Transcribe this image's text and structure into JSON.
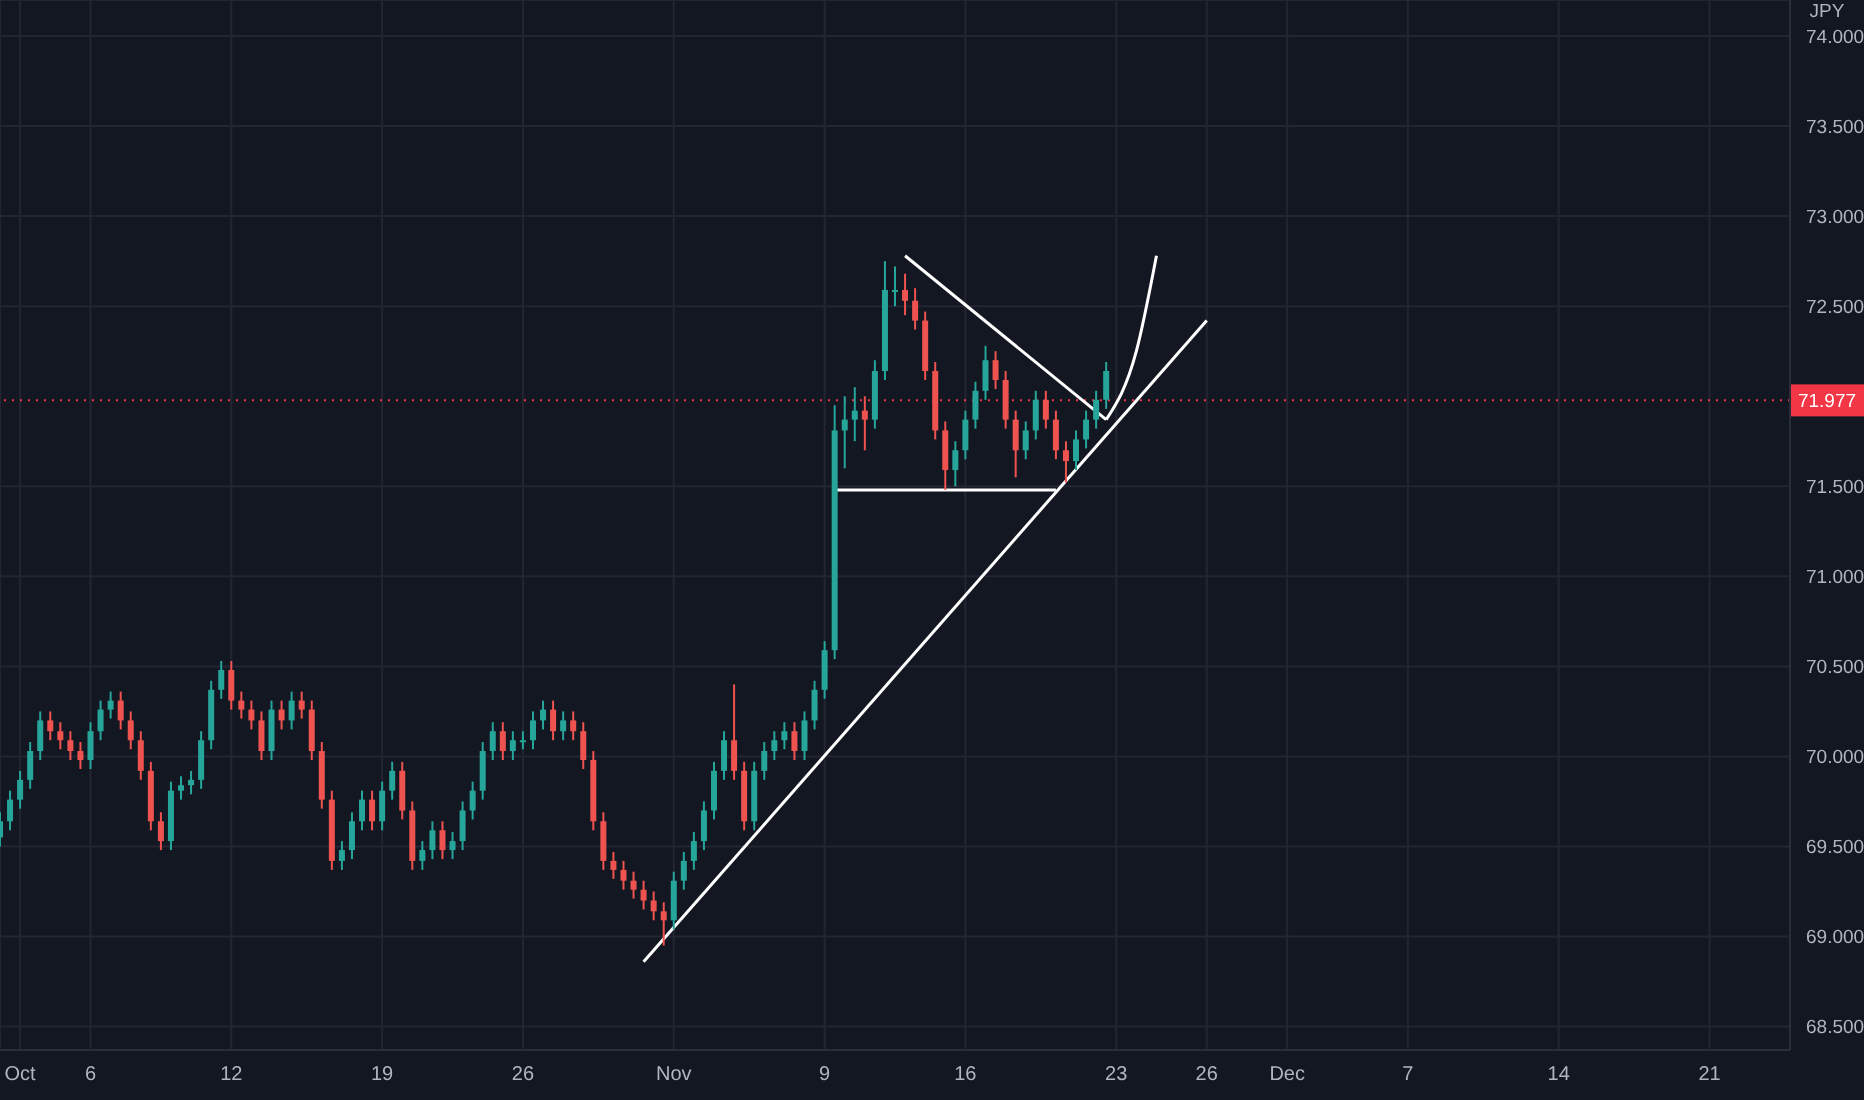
{
  "chart_data": {
    "type": "candlestick",
    "ylabel": "JPY",
    "categories": [
      null,
      null,
      "Oct",
      null,
      null,
      null,
      null,
      null,
      null,
      "6",
      null,
      null,
      null,
      null,
      null,
      null,
      null,
      null,
      null,
      null,
      null,
      null,
      null,
      "12",
      null,
      null,
      null,
      null,
      null,
      null,
      null,
      null,
      null,
      null,
      null,
      null,
      null,
      null,
      "19",
      null,
      null,
      null,
      null,
      null,
      null,
      null,
      null,
      null,
      null,
      null,
      null,
      null,
      "26",
      null,
      null,
      null,
      null,
      null,
      null,
      null,
      null,
      null,
      null,
      null,
      null,
      null,
      null,
      "Nov",
      null,
      null,
      null,
      null,
      null,
      null,
      null,
      null,
      null,
      null,
      null,
      null,
      null,
      null,
      "9",
      null,
      null,
      null,
      null,
      null,
      null,
      null,
      null,
      null,
      null,
      null,
      null,
      null,
      "16",
      null,
      null,
      null,
      null,
      null,
      null,
      null,
      null,
      null,
      null,
      null,
      null,
      null,
      null,
      "23",
      null,
      null,
      null,
      null,
      null,
      null,
      null,
      null,
      "26",
      null,
      null,
      null,
      null,
      null,
      null,
      null,
      "Dec",
      null,
      null,
      null,
      null,
      null,
      null,
      null,
      null,
      null,
      null,
      null,
      "7",
      null,
      null,
      null,
      null,
      null,
      null,
      null,
      null,
      null,
      null,
      null,
      null,
      null,
      null,
      "14",
      null,
      null,
      null,
      null,
      null,
      null,
      null,
      null,
      null,
      null,
      null,
      null,
      null,
      null,
      "21",
      null,
      null,
      null,
      null,
      null,
      null,
      null,
      null
    ],
    "ohlc": [
      [
        69.55,
        69.69,
        69.5,
        69.64
      ],
      [
        69.64,
        69.81,
        69.59,
        69.76
      ],
      [
        69.76,
        69.92,
        69.71,
        69.87
      ],
      [
        69.87,
        70.08,
        69.82,
        70.03
      ],
      [
        70.03,
        70.25,
        69.98,
        70.2
      ],
      [
        70.2,
        70.25,
        70.09,
        70.14
      ],
      [
        70.14,
        70.19,
        70.04,
        70.09
      ],
      [
        70.09,
        70.14,
        69.98,
        70.03
      ],
      [
        70.03,
        70.08,
        69.93,
        69.98
      ],
      [
        69.98,
        70.19,
        69.93,
        70.14
      ],
      [
        70.14,
        70.31,
        70.09,
        70.26
      ],
      [
        70.26,
        70.36,
        70.21,
        70.31
      ],
      [
        70.31,
        70.36,
        70.15,
        70.2
      ],
      [
        70.2,
        70.25,
        70.04,
        70.09
      ],
      [
        70.09,
        70.14,
        69.87,
        69.92
      ],
      [
        69.92,
        69.97,
        69.59,
        69.64
      ],
      [
        69.64,
        69.69,
        69.48,
        69.53
      ],
      [
        69.53,
        69.86,
        69.48,
        69.81
      ],
      [
        69.81,
        69.89,
        69.76,
        69.84
      ],
      [
        69.84,
        69.92,
        69.79,
        69.87
      ],
      [
        69.87,
        70.14,
        69.82,
        70.09
      ],
      [
        70.09,
        70.42,
        70.04,
        70.37
      ],
      [
        70.37,
        70.53,
        70.32,
        70.48
      ],
      [
        70.48,
        70.53,
        70.26,
        70.31
      ],
      [
        70.31,
        70.36,
        70.21,
        70.26
      ],
      [
        70.26,
        70.31,
        70.15,
        70.2
      ],
      [
        70.2,
        70.25,
        69.98,
        70.03
      ],
      [
        70.03,
        70.31,
        69.98,
        70.26
      ],
      [
        70.26,
        70.31,
        70.15,
        70.2
      ],
      [
        70.2,
        70.36,
        70.15,
        70.31
      ],
      [
        70.31,
        70.36,
        70.21,
        70.26
      ],
      [
        70.26,
        70.31,
        69.98,
        70.03
      ],
      [
        70.03,
        70.08,
        69.71,
        69.76
      ],
      [
        69.76,
        69.81,
        69.37,
        69.42
      ],
      [
        69.42,
        69.53,
        69.37,
        69.48
      ],
      [
        69.48,
        69.69,
        69.43,
        69.64
      ],
      [
        69.64,
        69.81,
        69.59,
        69.76
      ],
      [
        69.76,
        69.81,
        69.59,
        69.64
      ],
      [
        69.64,
        69.86,
        69.59,
        69.81
      ],
      [
        69.81,
        69.97,
        69.76,
        69.92
      ],
      [
        69.92,
        69.97,
        69.65,
        69.7
      ],
      [
        69.7,
        69.75,
        69.37,
        69.42
      ],
      [
        69.42,
        69.53,
        69.37,
        69.48
      ],
      [
        69.48,
        69.64,
        69.43,
        69.59
      ],
      [
        69.59,
        69.64,
        69.43,
        69.48
      ],
      [
        69.48,
        69.58,
        69.43,
        69.53
      ],
      [
        69.53,
        69.75,
        69.48,
        69.7
      ],
      [
        69.7,
        69.86,
        69.65,
        69.81
      ],
      [
        69.81,
        70.08,
        69.76,
        70.03
      ],
      [
        70.03,
        70.19,
        69.98,
        70.14
      ],
      [
        70.14,
        70.19,
        69.98,
        70.03
      ],
      [
        70.03,
        70.14,
        69.98,
        70.09
      ],
      [
        70.09,
        70.14,
        70.04,
        70.09
      ],
      [
        70.09,
        70.25,
        70.04,
        70.2
      ],
      [
        70.2,
        70.31,
        70.15,
        70.26
      ],
      [
        70.26,
        70.31,
        70.09,
        70.14
      ],
      [
        70.14,
        70.25,
        70.09,
        70.2
      ],
      [
        70.2,
        70.25,
        70.09,
        70.14
      ],
      [
        70.14,
        70.19,
        69.93,
        69.98
      ],
      [
        69.98,
        70.03,
        69.59,
        69.64
      ],
      [
        69.64,
        69.69,
        69.37,
        69.42
      ],
      [
        69.42,
        69.47,
        69.32,
        69.37
      ],
      [
        69.37,
        69.42,
        69.26,
        69.31
      ],
      [
        69.31,
        69.36,
        69.21,
        69.26
      ],
      [
        69.26,
        69.31,
        69.15,
        69.2
      ],
      [
        69.2,
        69.25,
        69.09,
        69.14
      ],
      [
        69.14,
        69.19,
        68.95,
        69.09
      ],
      [
        69.09,
        69.36,
        69.04,
        69.31
      ],
      [
        69.31,
        69.47,
        69.26,
        69.42
      ],
      [
        69.42,
        69.58,
        69.37,
        69.53
      ],
      [
        69.53,
        69.75,
        69.48,
        69.7
      ],
      [
        69.7,
        69.97,
        69.65,
        69.92
      ],
      [
        69.92,
        70.14,
        69.87,
        70.09
      ],
      [
        70.09,
        70.4,
        69.87,
        69.92
      ],
      [
        69.92,
        69.97,
        69.59,
        69.64
      ],
      [
        69.64,
        69.97,
        69.59,
        69.92
      ],
      [
        69.92,
        70.08,
        69.87,
        70.03
      ],
      [
        70.03,
        70.14,
        69.98,
        70.09
      ],
      [
        70.09,
        70.19,
        70.04,
        70.14
      ],
      [
        70.14,
        70.19,
        69.98,
        70.03
      ],
      [
        70.03,
        70.25,
        69.98,
        70.2
      ],
      [
        70.2,
        70.42,
        70.15,
        70.37
      ],
      [
        70.37,
        70.64,
        70.32,
        70.59
      ],
      [
        70.59,
        71.95,
        70.54,
        71.81
      ],
      [
        71.81,
        72.0,
        71.6,
        71.87
      ],
      [
        71.87,
        72.05,
        71.75,
        71.92
      ],
      [
        71.92,
        72.0,
        71.7,
        71.87
      ],
      [
        71.87,
        72.2,
        71.82,
        72.14
      ],
      [
        72.14,
        72.75,
        72.09,
        72.59
      ],
      [
        72.59,
        72.72,
        72.5,
        72.59
      ],
      [
        72.59,
        72.68,
        72.45,
        72.53
      ],
      [
        72.53,
        72.6,
        72.37,
        72.42
      ],
      [
        72.42,
        72.47,
        72.09,
        72.14
      ],
      [
        72.14,
        72.19,
        71.76,
        71.81
      ],
      [
        71.81,
        71.86,
        71.48,
        71.59
      ],
      [
        71.59,
        71.75,
        71.5,
        71.7
      ],
      [
        71.7,
        71.92,
        71.65,
        71.87
      ],
      [
        71.87,
        72.08,
        71.82,
        72.03
      ],
      [
        72.03,
        72.28,
        71.98,
        72.2
      ],
      [
        72.2,
        72.25,
        72.04,
        72.09
      ],
      [
        72.09,
        72.14,
        71.82,
        71.87
      ],
      [
        71.87,
        71.92,
        71.55,
        71.7
      ],
      [
        71.7,
        71.86,
        71.65,
        71.81
      ],
      [
        71.81,
        72.03,
        71.76,
        71.98
      ],
      [
        71.98,
        72.03,
        71.82,
        71.87
      ],
      [
        71.87,
        71.92,
        71.65,
        71.7
      ],
      [
        71.7,
        71.75,
        71.52,
        71.64
      ],
      [
        71.64,
        71.81,
        71.59,
        71.76
      ],
      [
        71.76,
        71.92,
        71.71,
        71.87
      ],
      [
        71.87,
        72.03,
        71.82,
        71.98
      ],
      [
        71.98,
        72.19,
        71.93,
        72.14
      ],
      null,
      null,
      null,
      null,
      null,
      null,
      null,
      null,
      null,
      null,
      null,
      null,
      null,
      null,
      null,
      null,
      null,
      null,
      null,
      null,
      null,
      null,
      null,
      null,
      null,
      null,
      null,
      null,
      null,
      null,
      null,
      null,
      null,
      null,
      null,
      null,
      null,
      null,
      null,
      null,
      null,
      null,
      null,
      null,
      null,
      null,
      null,
      null,
      null,
      null,
      null,
      null,
      null,
      null,
      null,
      null,
      null,
      null,
      null,
      null,
      null,
      null,
      null,
      null,
      null,
      null,
      null,
      null
    ],
    "series": [
      {
        "type": "line",
        "color": "#ffffff",
        "values": [
          null,
          null,
          null,
          null,
          null,
          null,
          null,
          null,
          null,
          null,
          null,
          null,
          null,
          null,
          null,
          null,
          null,
          null,
          null,
          null,
          null,
          null,
          null,
          null,
          null,
          null,
          null,
          null,
          null,
          null,
          null,
          null,
          null,
          null,
          null,
          null,
          null,
          null,
          null,
          null,
          null,
          null,
          null,
          null,
          null,
          null,
          null,
          null,
          null,
          null,
          null,
          null,
          null,
          null,
          null,
          null,
          null,
          null,
          null,
          null,
          null,
          null,
          null,
          null,
          68.86,
          null,
          null,
          null,
          null,
          null,
          null,
          null,
          null,
          null,
          null,
          null,
          null,
          null,
          null,
          null,
          null,
          null,
          null,
          null,
          null,
          null,
          null,
          null,
          null,
          null,
          null,
          null,
          null,
          null,
          null,
          null,
          null,
          null,
          null,
          null,
          null,
          null,
          null,
          null,
          null,
          null,
          null,
          null,
          null,
          null,
          null,
          null,
          null,
          null,
          null,
          null,
          null,
          null,
          null,
          null,
          72.42,
          null,
          null,
          null,
          null,
          null,
          null,
          null,
          null,
          null,
          null,
          null,
          null,
          null,
          null,
          null,
          null,
          null,
          null,
          null,
          null,
          null,
          null,
          null,
          null,
          null,
          null,
          null,
          null,
          null,
          null,
          null,
          null,
          null,
          null,
          null,
          null,
          null,
          null,
          null,
          null,
          null,
          null,
          null,
          null,
          null,
          null,
          null,
          null,
          null,
          null,
          null,
          null,
          null,
          null,
          null,
          null,
          null,
          null
        ]
      },
      {
        "type": "line",
        "color": "#ffffff",
        "values": [
          null,
          null,
          null,
          null,
          null,
          null,
          null,
          null,
          null,
          null,
          null,
          null,
          null,
          null,
          null,
          null,
          null,
          null,
          null,
          null,
          null,
          null,
          null,
          null,
          null,
          null,
          null,
          null,
          null,
          null,
          null,
          null,
          null,
          null,
          null,
          null,
          null,
          null,
          null,
          null,
          null,
          null,
          null,
          null,
          null,
          null,
          null,
          null,
          null,
          null,
          null,
          null,
          null,
          null,
          null,
          null,
          null,
          null,
          null,
          null,
          null,
          null,
          null,
          null,
          null,
          null,
          null,
          null,
          null,
          null,
          null,
          null,
          null,
          null,
          null,
          null,
          null,
          null,
          null,
          null,
          null,
          null,
          null,
          null,
          null,
          null,
          null,
          null,
          null,
          null,
          72.78,
          null,
          null,
          null,
          null,
          null,
          null,
          null,
          null,
          null,
          null,
          null,
          null,
          null,
          null,
          null,
          null,
          null,
          null,
          null,
          71.87,
          null,
          null,
          null,
          null,
          null,
          null,
          null,
          null,
          null,
          null,
          null,
          null,
          null,
          null,
          null,
          null,
          null,
          null,
          null,
          null,
          null,
          null,
          null,
          null,
          null,
          null,
          null,
          null,
          null,
          null,
          null,
          null,
          null,
          null,
          null,
          null,
          null,
          null,
          null,
          null,
          null,
          null,
          null,
          null,
          null,
          null,
          null,
          null,
          null,
          null,
          null,
          null,
          null,
          null,
          null,
          null,
          null,
          null,
          null,
          null,
          null,
          null,
          null,
          null,
          null,
          null,
          null,
          null
        ]
      },
      {
        "type": "line",
        "color": "#ffffff",
        "values": [
          null,
          null,
          null,
          null,
          null,
          null,
          null,
          null,
          null,
          null,
          null,
          null,
          null,
          null,
          null,
          null,
          null,
          null,
          null,
          null,
          null,
          null,
          null,
          null,
          null,
          null,
          null,
          null,
          null,
          null,
          null,
          null,
          null,
          null,
          null,
          null,
          null,
          null,
          null,
          null,
          null,
          null,
          null,
          null,
          null,
          null,
          null,
          null,
          null,
          null,
          null,
          null,
          null,
          null,
          null,
          null,
          null,
          null,
          null,
          null,
          null,
          null,
          null,
          null,
          null,
          null,
          null,
          null,
          null,
          null,
          null,
          null,
          null,
          null,
          null,
          null,
          null,
          null,
          null,
          null,
          null,
          null,
          null,
          71.48,
          null,
          null,
          null,
          null,
          null,
          null,
          null,
          null,
          null,
          null,
          null,
          null,
          null,
          null,
          null,
          null,
          null,
          null,
          null,
          null,
          null,
          71.48,
          null,
          null,
          null,
          null,
          null,
          null,
          null,
          null,
          null,
          null,
          null,
          null,
          null,
          null,
          null,
          null,
          null,
          null,
          null,
          null,
          null,
          null,
          null,
          null,
          null,
          null,
          null,
          null,
          null,
          null,
          null,
          null,
          null,
          null,
          null,
          null,
          null,
          null,
          null,
          null,
          null,
          null,
          null,
          null,
          null,
          null,
          null,
          null,
          null,
          null,
          null,
          null,
          null,
          null,
          null,
          null,
          null,
          null,
          null,
          null,
          null,
          null,
          null,
          null,
          null,
          null,
          null,
          null,
          null,
          null,
          null,
          null,
          null
        ]
      },
      {
        "type": "line",
        "color": "#ffffff",
        "values": [
          null,
          null,
          null,
          null,
          null,
          null,
          null,
          null,
          null,
          null,
          null,
          null,
          null,
          null,
          null,
          null,
          null,
          null,
          null,
          null,
          null,
          null,
          null,
          null,
          null,
          null,
          null,
          null,
          null,
          null,
          null,
          null,
          null,
          null,
          null,
          null,
          null,
          null,
          null,
          null,
          null,
          null,
          null,
          null,
          null,
          null,
          null,
          null,
          null,
          null,
          null,
          null,
          null,
          null,
          null,
          null,
          null,
          null,
          null,
          null,
          null,
          null,
          null,
          null,
          null,
          null,
          null,
          null,
          null,
          null,
          null,
          null,
          null,
          null,
          null,
          null,
          null,
          null,
          null,
          null,
          null,
          null,
          null,
          null,
          null,
          null,
          null,
          null,
          null,
          null,
          null,
          null,
          null,
          null,
          null,
          null,
          null,
          null,
          null,
          null,
          null,
          null,
          null,
          null,
          null,
          null,
          null,
          null,
          null,
          null,
          71.87,
          null,
          null,
          72.25,
          null,
          72.78,
          null,
          null,
          null,
          null,
          null,
          null,
          null,
          null,
          null,
          null,
          null,
          null,
          null,
          null,
          null,
          null,
          null,
          null,
          null,
          null,
          null,
          null,
          null,
          null,
          null,
          null,
          null,
          null,
          null,
          null,
          null,
          null,
          null,
          null,
          null,
          null,
          null,
          null,
          null,
          null,
          null,
          null,
          null,
          null,
          null,
          null,
          null,
          null,
          null,
          null,
          null,
          null,
          null,
          null,
          null,
          null,
          null,
          null,
          null,
          null,
          null,
          null,
          null
        ]
      }
    ],
    "ylim": [
      68.37,
      74.2
    ],
    "yticks": [
      {
        "value": 68.5,
        "label": "68.500"
      },
      {
        "value": 69,
        "label": "69.000"
      },
      {
        "value": 69.5,
        "label": "69.500"
      },
      {
        "value": 70,
        "label": "70.000"
      },
      {
        "value": 70.5,
        "label": "70.500"
      },
      {
        "value": 71,
        "label": "71.000"
      },
      {
        "value": 71.5,
        "label": "71.500"
      },
      {
        "value": 72.5,
        "label": "72.500"
      },
      {
        "value": 73,
        "label": "73.000"
      },
      {
        "value": 73.5,
        "label": "73.500"
      },
      {
        "value": 74,
        "label": "74.000"
      }
    ],
    "ref_lines": [
      {
        "axis": "y",
        "value": 71.977,
        "label": "71.977",
        "color": "#f23645",
        "line_style": "dotted"
      }
    ],
    "grid": true,
    "legend": false,
    "marker": "none"
  }
}
